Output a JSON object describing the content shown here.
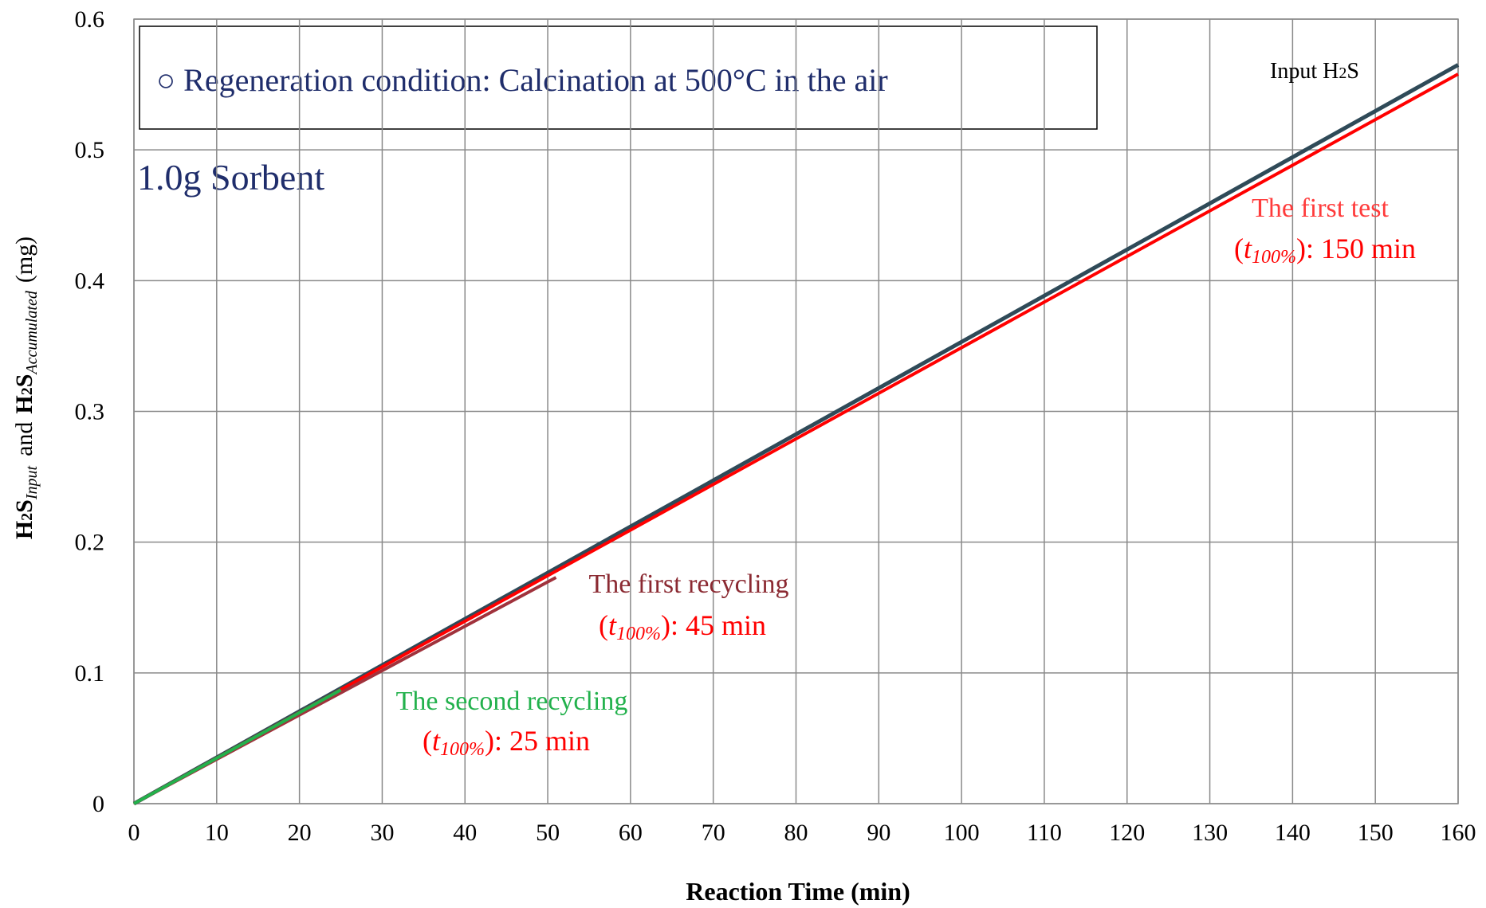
{
  "chart_data": {
    "type": "line",
    "x_label": "Reaction Time (min)",
    "y_label_parts": [
      "H",
      "2",
      "S",
      "Input",
      "and",
      "H",
      "2",
      "S",
      "Accumulated",
      "(mg)"
    ],
    "xlim": [
      0,
      160
    ],
    "ylim": [
      0,
      0.6
    ],
    "xticks": [
      0,
      10,
      20,
      30,
      40,
      50,
      60,
      70,
      80,
      90,
      100,
      110,
      120,
      130,
      140,
      150,
      160
    ],
    "yticks": [
      0,
      0.1,
      0.2,
      0.3,
      0.4,
      0.5,
      0.6
    ],
    "grid": true,
    "series": [
      {
        "color": "#2f4a58",
        "x": [
          0,
          160
        ],
        "values": [
          0,
          0.565
        ]
      },
      {
        "color": "#ff0000",
        "x": [
          0,
          160
        ],
        "values": [
          0,
          0.558
        ]
      },
      {
        "color": "#a0323c",
        "x": [
          0,
          51
        ],
        "values": [
          0,
          0.173
        ]
      },
      {
        "color": "#22b14c",
        "x": [
          0,
          25
        ],
        "values": [
          0,
          0.087
        ]
      }
    ],
    "box_text": "○ Regeneration condition: Calcination at 500°C in the air",
    "sorbent_text": "1.0g Sorbent",
    "input_label_parts": [
      "Input H",
      "2",
      "S"
    ],
    "annotations": [
      {
        "title": "The first test",
        "title_color": "#ff3b3b",
        "parts": [
          "(",
          "t",
          "100%",
          "): 150 min"
        ]
      },
      {
        "title": "The first recycling",
        "title_color": "#8b2a32",
        "parts": [
          "(",
          "t",
          "100%",
          "): 45 min"
        ]
      },
      {
        "title": "The second recycling",
        "title_color": "#22b14c",
        "parts": [
          "(",
          "t",
          "100%",
          "): 25 min"
        ]
      }
    ]
  }
}
